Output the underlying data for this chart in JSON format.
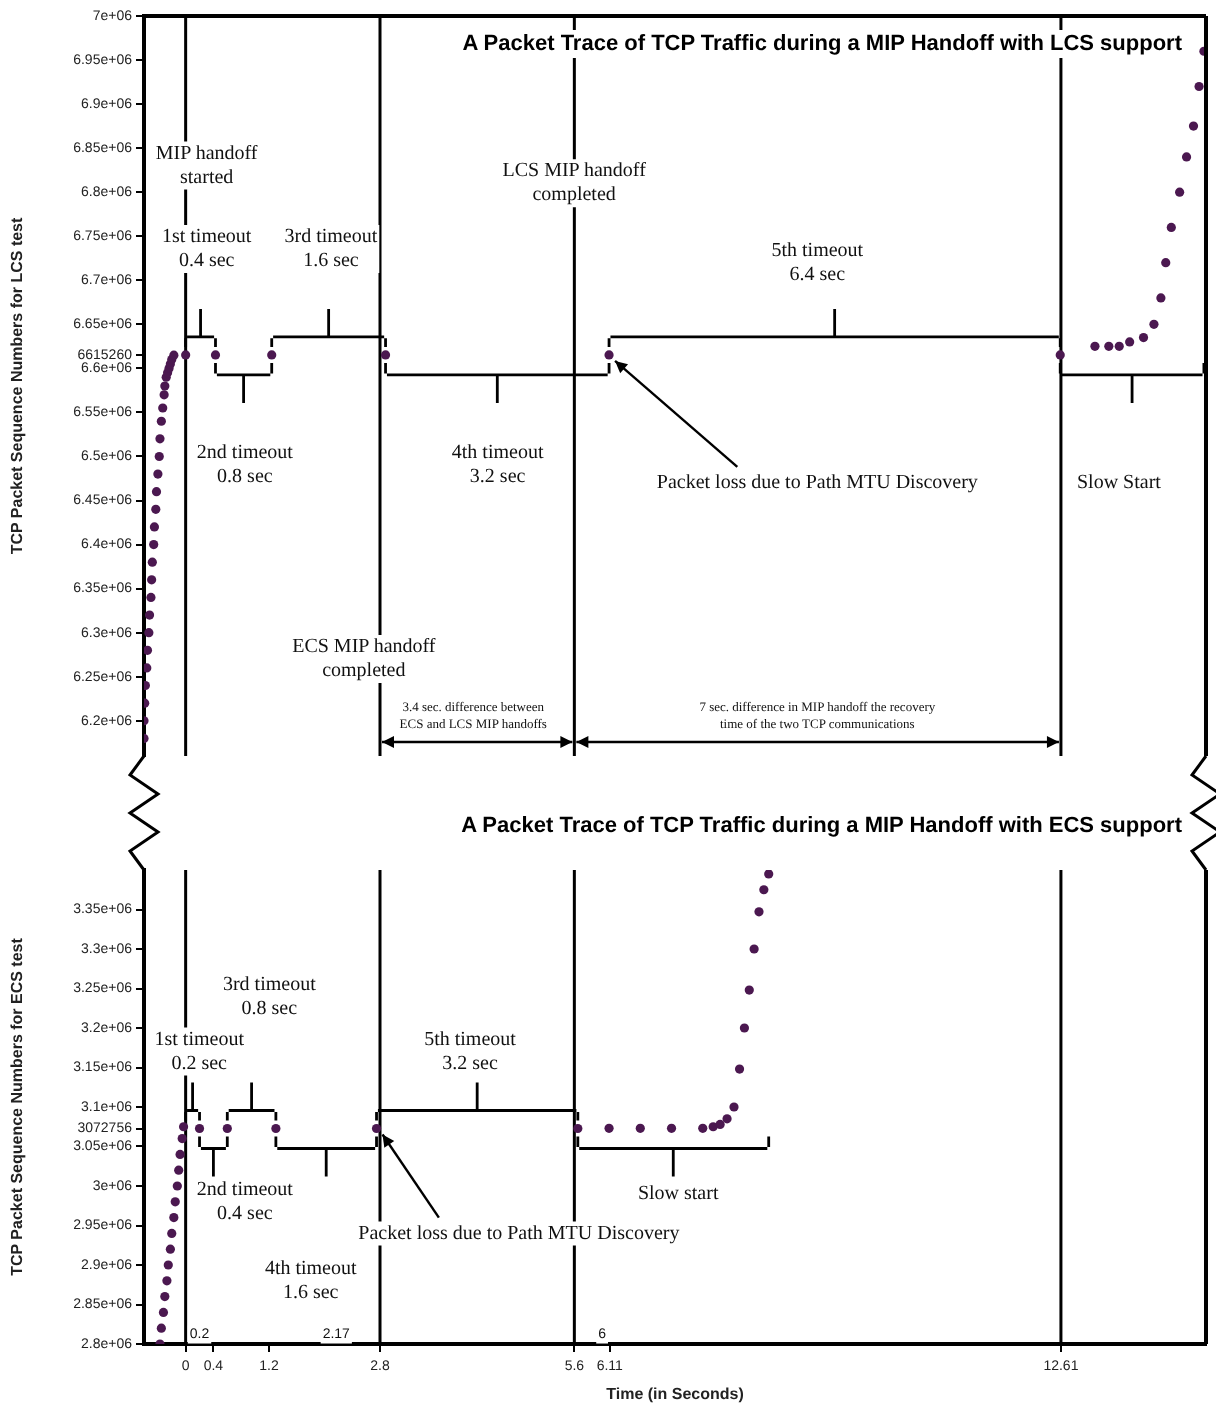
{
  "chart_data": [
    {
      "type": "scatter",
      "title": "A Packet Trace of TCP Traffic during a MIP Handoff with LCS support",
      "ylabel": "TCP Packet Sequence Numbers for LCS test",
      "xlim": [
        -0.6,
        14.7
      ],
      "ylim": [
        6160000,
        7000000
      ],
      "yticks": [
        {
          "value": 6200000,
          "label": "6.2e+06"
        },
        {
          "value": 6250000,
          "label": "6.25e+06"
        },
        {
          "value": 6300000,
          "label": "6.3e+06"
        },
        {
          "value": 6350000,
          "label": "6.35e+06"
        },
        {
          "value": 6400000,
          "label": "6.4e+06"
        },
        {
          "value": 6450000,
          "label": "6.45e+06"
        },
        {
          "value": 6500000,
          "label": "6.5e+06"
        },
        {
          "value": 6550000,
          "label": "6.55e+06"
        },
        {
          "value": 6600000,
          "label": "6.6e+06"
        },
        6615260,
        {
          "value": 6650000,
          "label": "6.65e+06"
        },
        {
          "value": 6700000,
          "label": "6.7e+06"
        },
        {
          "value": 6750000,
          "label": "6.75e+06"
        },
        {
          "value": 6800000,
          "label": "6.8e+06"
        },
        {
          "value": 6850000,
          "label": "6.85e+06"
        },
        {
          "value": 6900000,
          "label": "6.9e+06"
        },
        {
          "value": 6950000,
          "label": "6.95e+06"
        },
        {
          "value": 7000000,
          "label": "7e+06"
        }
      ],
      "tick_labels": "y",
      "marker": "circle",
      "grid": false,
      "series": [
        {
          "color": "#4b1850",
          "x": [
            -0.6,
            -0.6,
            -0.59,
            -0.58,
            -0.56,
            -0.55,
            -0.53,
            -0.52,
            -0.5,
            -0.49,
            -0.48,
            -0.46,
            -0.45,
            -0.43,
            -0.42,
            -0.4,
            -0.38,
            -0.37,
            -0.35,
            -0.33,
            -0.31,
            -0.3,
            -0.28,
            -0.26,
            -0.24,
            -0.22,
            -0.2,
            -0.17
          ],
          "values": [
            6180000,
            6200000,
            6220000,
            6240000,
            6260000,
            6280000,
            6300000,
            6320000,
            6340000,
            6360000,
            6380000,
            6400000,
            6420000,
            6440000,
            6460000,
            6480000,
            6500000,
            6520000,
            6540000,
            6555000,
            6570000,
            6580000,
            6590000,
            6595000,
            6600000,
            6605000,
            6610000,
            6615000
          ]
        },
        {
          "color": "#4b1850",
          "x": [
            0,
            0.43,
            1.24,
            2.88,
            6.1,
            12.6
          ],
          "values": [
            6615260,
            6615260,
            6615260,
            6615260,
            6615260,
            6615260
          ]
        },
        {
          "color": "#4b1850",
          "x": [
            13.1,
            13.3,
            13.45,
            13.6,
            13.8,
            13.95,
            14.05,
            14.12,
            14.2,
            14.32,
            14.42,
            14.52,
            14.6,
            14.67
          ],
          "values": [
            6625000,
            6625000,
            6625000,
            6630000,
            6635000,
            6650000,
            6680000,
            6720000,
            6760000,
            6800000,
            6840000,
            6875000,
            6920000,
            6960000
          ]
        }
      ],
      "ref_lines": [
        {
          "axis": "x",
          "value": 0
        },
        {
          "axis": "x",
          "value": 2.8
        },
        {
          "axis": "x",
          "value": 5.6
        },
        {
          "axis": "x",
          "value": 12.61
        }
      ],
      "annotations": [
        "MIP handoff\nstarted",
        "1st timeout\n0.4 sec",
        "2nd timeout\n0.8 sec",
        "3rd timeout\n1.6 sec",
        "4th timeout\n3.2 sec",
        "LCS MIP handoff\ncompleted",
        "5th timeout\n6.4 sec",
        {
          "text": "Packet loss due to Path MTU Discovery",
          "x": 6.1,
          "y": 6615260
        },
        "Slow Start",
        "ECS MIP handoff\ncompleted",
        "3.4 sec. difference between\nECS and LCS MIP handoffs",
        "7 sec. difference in MIP handoff the recovery\ntime of the two TCP communications"
      ]
    },
    {
      "type": "scatter",
      "title": "A Packet Trace of TCP Traffic during a MIP Handoff with ECS support",
      "xlabel": "Time (in Seconds)",
      "ylabel": "TCP Packet Sequence Numbers for ECS test",
      "xlim": [
        -0.6,
        14.7
      ],
      "ylim": [
        2800000,
        3400000
      ],
      "xticks": [
        0,
        0.4,
        1.2,
        2.8,
        5.6,
        6.11,
        12.61
      ],
      "yticks": [
        {
          "value": 2800000,
          "label": "2.8e+06"
        },
        {
          "value": 2850000,
          "label": "2.85e+06"
        },
        {
          "value": 2900000,
          "label": "2.9e+06"
        },
        {
          "value": 2950000,
          "label": "2.95e+06"
        },
        {
          "value": 3000000,
          "label": "3e+06"
        },
        {
          "value": 3050000,
          "label": "3.05e+06"
        },
        3072756,
        {
          "value": 3100000,
          "label": "3.1e+06"
        },
        {
          "value": 3150000,
          "label": "3.15e+06"
        },
        {
          "value": 3200000,
          "label": "3.2e+06"
        },
        {
          "value": 3250000,
          "label": "3.25e+06"
        },
        {
          "value": 3300000,
          "label": "3.3e+06"
        },
        {
          "value": 3350000,
          "label": "3.35e+06"
        }
      ],
      "marker": "circle",
      "grid": false,
      "series": [
        {
          "color": "#4b1850",
          "x": [
            -0.37,
            -0.35,
            -0.32,
            -0.3,
            -0.27,
            -0.25,
            -0.22,
            -0.2,
            -0.17,
            -0.15,
            -0.12,
            -0.1,
            -0.08,
            -0.05,
            -0.03
          ],
          "values": [
            2800000,
            2820000,
            2840000,
            2860000,
            2880000,
            2900000,
            2920000,
            2940000,
            2960000,
            2980000,
            3000000,
            3020000,
            3040000,
            3060000,
            3075000
          ]
        },
        {
          "color": "#4b1850",
          "x": [
            0.2,
            0.6,
            1.3,
            2.75,
            5.65
          ],
          "values": [
            3072756,
            3072756,
            3072756,
            3072756,
            3072756
          ]
        },
        {
          "color": "#4b1850",
          "x": [
            6.1,
            6.55,
            7.0,
            7.45,
            7.6,
            7.7,
            7.8,
            7.9,
            7.98,
            8.05,
            8.12,
            8.19,
            8.26,
            8.33,
            8.4
          ],
          "values": [
            3073000,
            3073000,
            3073000,
            3073000,
            3075000,
            3078000,
            3085000,
            3100000,
            3148000,
            3200000,
            3248000,
            3300000,
            3347000,
            3375000,
            3395000
          ]
        }
      ],
      "ref_lines": [
        {
          "axis": "x",
          "value": 0
        },
        {
          "axis": "x",
          "value": 2.8
        },
        {
          "axis": "x",
          "value": 5.6
        },
        {
          "axis": "x",
          "value": 12.61
        }
      ],
      "annotations": [
        "1st timeout\n0.2 sec",
        "2nd timeout\n0.4 sec",
        "3rd timeout\n0.8 sec",
        "4th timeout\n1.6 sec",
        "5th timeout\n3.2 sec",
        {
          "text": "Packet loss due to Path MTU Discovery",
          "x": 2.75,
          "y": 3072756
        },
        "Slow start",
        {
          "text": "0.2",
          "x": 0.2,
          "y": 2812000
        },
        {
          "text": "2.17",
          "x": 2.17,
          "y": 2812000
        },
        {
          "text": "6",
          "x": 6,
          "y": 2812000
        }
      ]
    }
  ]
}
